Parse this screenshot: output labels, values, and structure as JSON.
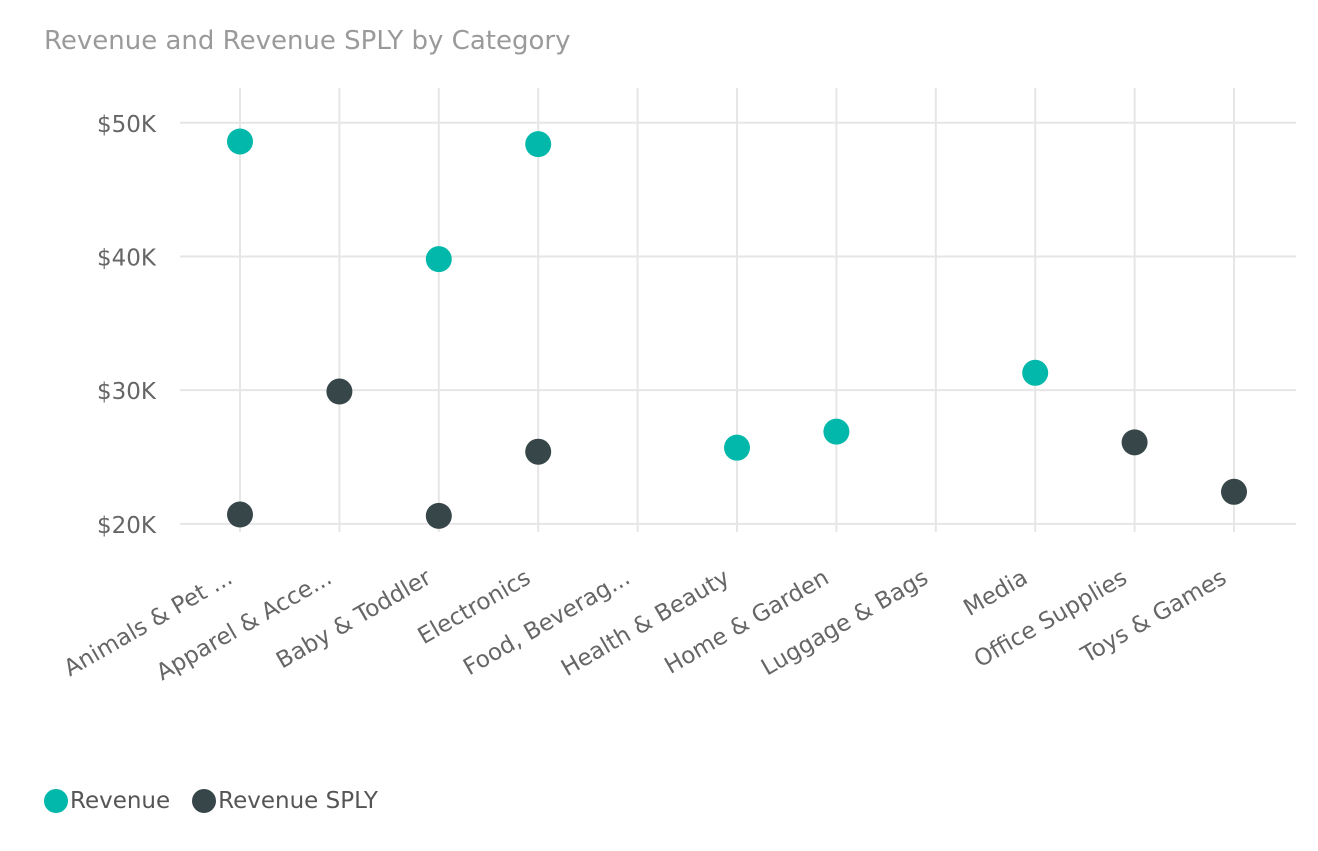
{
  "chart_data": {
    "type": "scatter",
    "title": "Revenue and Revenue SPLY by Category",
    "categories": [
      "Animals & Pet ...",
      "Apparel & Acce...",
      "Baby & Toddler",
      "Electronics",
      "Food, Beverag...",
      "Health & Beauty",
      "Home & Garden",
      "Luggage & Bags",
      "Media",
      "Office Supplies",
      "Toys & Games"
    ],
    "series": [
      {
        "name": "Revenue",
        "color": "#01B8AA",
        "values": [
          48600,
          null,
          39800,
          48400,
          null,
          25700,
          26900,
          null,
          31300,
          null,
          null
        ]
      },
      {
        "name": "Revenue SPLY",
        "color": "#374649",
        "values": [
          20700,
          29900,
          20600,
          25400,
          null,
          null,
          null,
          null,
          null,
          26100,
          22400
        ]
      }
    ],
    "y_ticks": [
      20000,
      30000,
      40000,
      50000
    ],
    "y_tick_labels": [
      "$20K",
      "$30K",
      "$40K",
      "$50K"
    ],
    "ylim": [
      17300,
      52600
    ],
    "xlabel": "",
    "ylabel": "",
    "grid": true,
    "legend_position": "bottom-left"
  }
}
